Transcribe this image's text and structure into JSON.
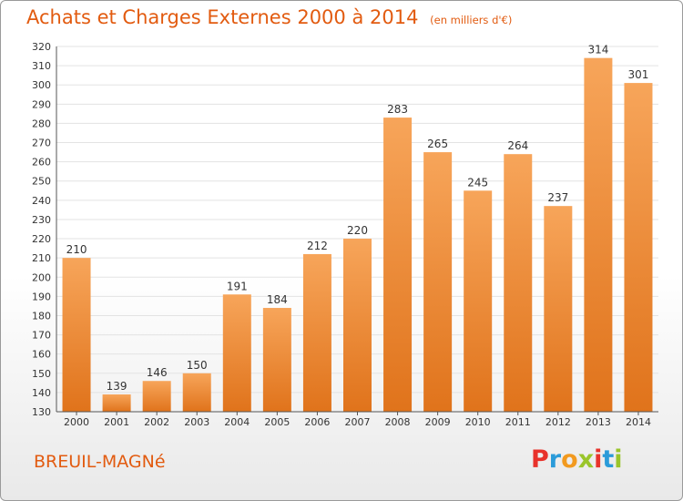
{
  "header": {
    "title": "Achats et Charges Externes 2000 à 2014",
    "subtitle": "(en milliers d'€)"
  },
  "footer": {
    "city": "BREUIL-MAGNé",
    "logo_letters": [
      "P",
      "r",
      "o",
      "x",
      "i",
      "t",
      "i"
    ],
    "logo_colors": [
      "#e8322b",
      "#2b9bd9",
      "#f29a1f",
      "#9ac52a",
      "#e8322b",
      "#2b9bd9",
      "#9ac52a"
    ]
  },
  "colors": {
    "bar_top": "#f7a55a",
    "bar_bottom": "#e0731b",
    "title": "#e25b10",
    "grid": "#e3e3e3"
  },
  "chart_data": {
    "type": "bar",
    "title": "Achats et Charges Externes 2000 à 2014",
    "subtitle": "(en milliers d'€)",
    "categories": [
      "2000",
      "2001",
      "2002",
      "2003",
      "2004",
      "2005",
      "2006",
      "2007",
      "2008",
      "2009",
      "2010",
      "2011",
      "2012",
      "2013",
      "2014"
    ],
    "values": [
      210,
      139,
      146,
      150,
      191,
      184,
      212,
      220,
      283,
      265,
      245,
      264,
      237,
      314,
      301
    ],
    "ylim": [
      130,
      320
    ],
    "yticks": [
      130,
      140,
      150,
      160,
      170,
      180,
      190,
      200,
      210,
      220,
      230,
      240,
      250,
      260,
      270,
      280,
      290,
      300,
      310,
      320
    ],
    "grid": true,
    "legend": "none"
  }
}
